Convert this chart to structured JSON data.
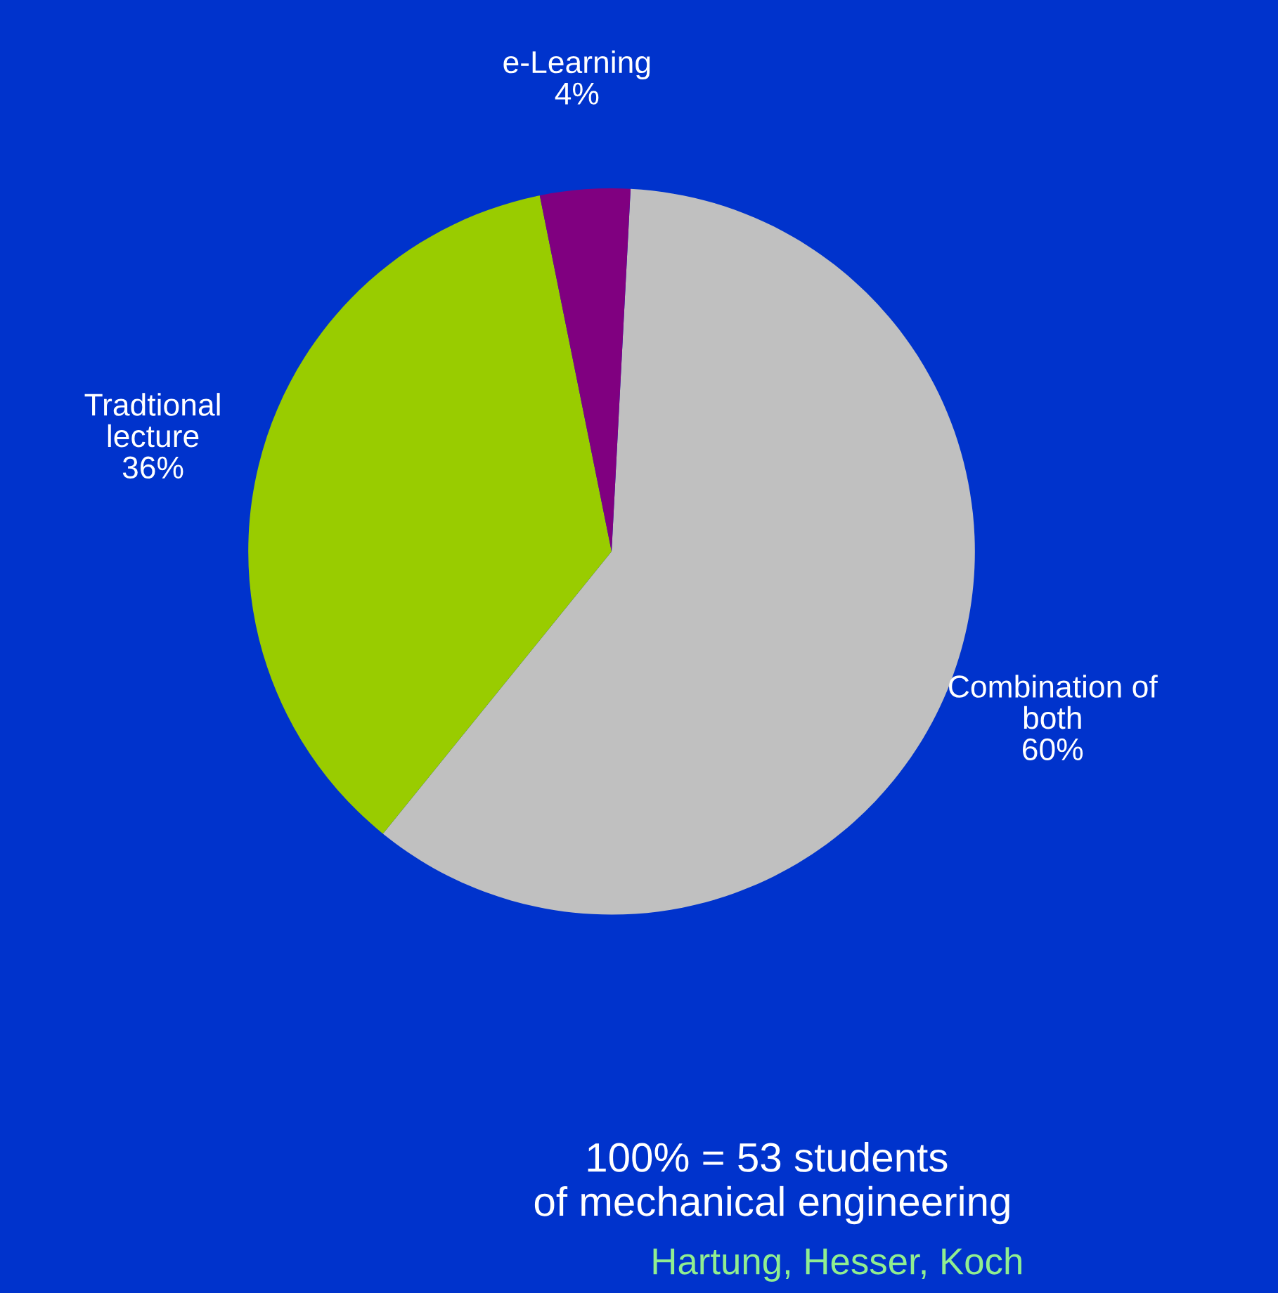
{
  "chart_data": {
    "type": "pie",
    "categories": [
      "Combination of both",
      "Tradtional lecture",
      "e-Learning"
    ],
    "values": [
      60,
      36,
      4
    ],
    "colors": [
      "#c0c0c0",
      "#99cc00",
      "#800080"
    ],
    "value_labels": [
      "60%",
      "36%",
      "4%"
    ],
    "annotations": [
      "100% = 53 students\n of mechanical engineering",
      "Hartung, Hesser, Koch"
    ]
  }
}
